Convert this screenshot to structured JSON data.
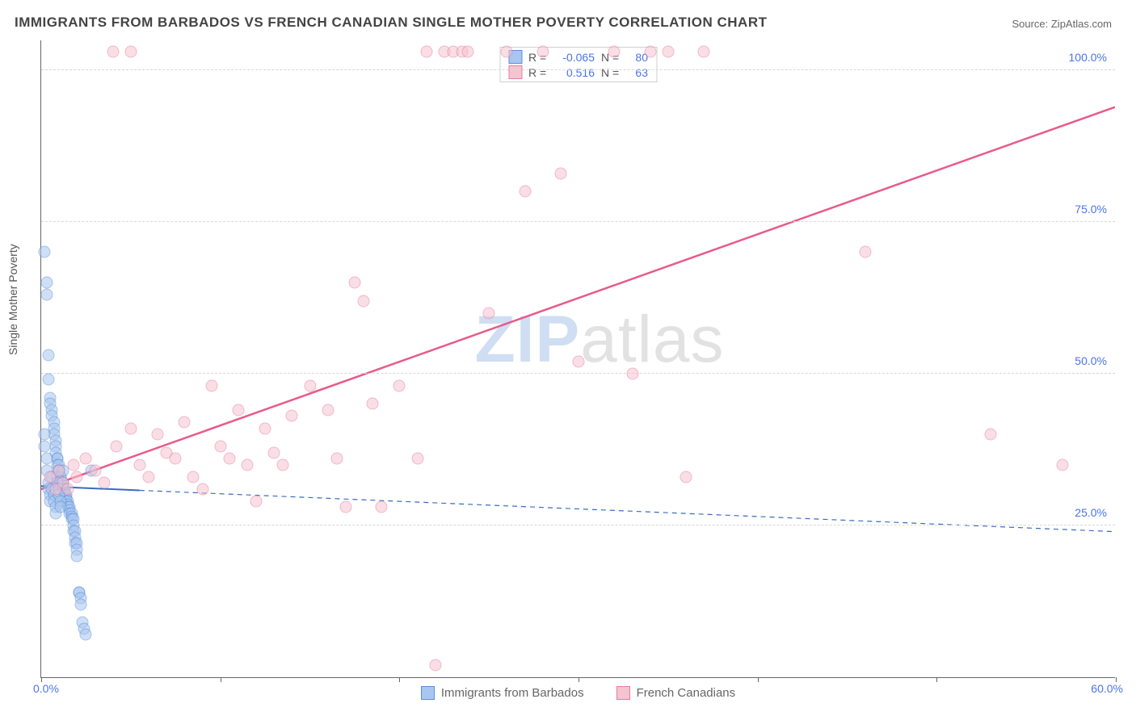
{
  "title": "IMMIGRANTS FROM BARBADOS VS FRENCH CANADIAN SINGLE MOTHER POVERTY CORRELATION CHART",
  "source": "Source: ZipAtlas.com",
  "ylabel": "Single Mother Poverty",
  "watermark": {
    "zip": "ZIP",
    "atlas": "atlas"
  },
  "chart": {
    "type": "scatter",
    "xlim": [
      0,
      60
    ],
    "ylim": [
      0,
      105
    ],
    "x_ticks": [
      0,
      10,
      20,
      30,
      40,
      50,
      60
    ],
    "x_tick_labels": {
      "min": "0.0%",
      "max": "60.0%"
    },
    "y_gridlines": [
      25,
      50,
      75,
      100
    ],
    "y_tick_labels": [
      "25.0%",
      "50.0%",
      "75.0%",
      "100.0%"
    ],
    "background_color": "#ffffff",
    "grid_color": "#d8d8d8",
    "axis_color": "#666666",
    "tick_label_color": "#4a74e8",
    "marker_radius": 6.5,
    "marker_opacity": 0.55,
    "series": [
      {
        "name": "Immigrants from Barbados",
        "fill": "#a8c6f0",
        "stroke": "#5b8fd6",
        "r_value": "-0.065",
        "n_value": "80",
        "trend": {
          "x1": 0,
          "y1": 31.5,
          "x2": 60,
          "y2": 24,
          "stroke": "#3a6bbf",
          "width": 2,
          "dash": "none",
          "solid_until_x": 5.5
        },
        "points": [
          [
            0.2,
            70
          ],
          [
            0.3,
            65
          ],
          [
            0.3,
            63
          ],
          [
            0.4,
            53
          ],
          [
            0.4,
            49
          ],
          [
            0.5,
            46
          ],
          [
            0.5,
            45
          ],
          [
            0.6,
            44
          ],
          [
            0.6,
            43
          ],
          [
            0.7,
            42
          ],
          [
            0.7,
            41
          ],
          [
            0.7,
            40
          ],
          [
            0.8,
            39
          ],
          [
            0.8,
            38
          ],
          [
            0.8,
            37
          ],
          [
            0.9,
            36
          ],
          [
            0.9,
            36
          ],
          [
            0.9,
            35
          ],
          [
            1.0,
            35
          ],
          [
            1.0,
            34
          ],
          [
            1.0,
            34
          ],
          [
            1.1,
            33
          ],
          [
            1.1,
            33
          ],
          [
            1.1,
            32
          ],
          [
            1.2,
            32
          ],
          [
            1.2,
            31.5
          ],
          [
            1.2,
            31
          ],
          [
            1.3,
            31
          ],
          [
            1.3,
            30.5
          ],
          [
            1.3,
            30
          ],
          [
            1.4,
            30
          ],
          [
            1.4,
            29.5
          ],
          [
            1.4,
            29
          ],
          [
            1.5,
            29
          ],
          [
            1.5,
            28.5
          ],
          [
            1.5,
            28
          ],
          [
            1.6,
            28
          ],
          [
            1.6,
            27.5
          ],
          [
            1.6,
            27
          ],
          [
            1.7,
            27
          ],
          [
            1.7,
            26.5
          ],
          [
            1.7,
            26
          ],
          [
            1.8,
            26
          ],
          [
            1.8,
            25
          ],
          [
            1.8,
            24
          ],
          [
            1.9,
            24
          ],
          [
            1.9,
            23
          ],
          [
            1.9,
            22
          ],
          [
            2.0,
            22
          ],
          [
            2.0,
            21
          ],
          [
            2.0,
            20
          ],
          [
            2.1,
            14
          ],
          [
            2.1,
            14
          ],
          [
            2.2,
            13
          ],
          [
            2.2,
            12
          ],
          [
            2.3,
            9
          ],
          [
            2.4,
            8
          ],
          [
            2.5,
            7
          ],
          [
            2.8,
            34
          ],
          [
            0.2,
            40
          ],
          [
            0.2,
            38
          ],
          [
            0.3,
            36
          ],
          [
            0.3,
            34
          ],
          [
            0.4,
            32
          ],
          [
            0.4,
            31
          ],
          [
            0.5,
            30
          ],
          [
            0.5,
            29
          ],
          [
            0.6,
            33
          ],
          [
            0.6,
            31
          ],
          [
            0.7,
            30
          ],
          [
            0.7,
            29
          ],
          [
            0.8,
            28
          ],
          [
            0.8,
            27
          ],
          [
            0.9,
            33
          ],
          [
            0.9,
            32
          ],
          [
            1.0,
            31
          ],
          [
            1.0,
            30
          ],
          [
            1.1,
            29
          ],
          [
            1.1,
            28
          ],
          [
            1.2,
            34
          ]
        ]
      },
      {
        "name": "French Canadians",
        "fill": "#f5c4d1",
        "stroke": "#e87ba0",
        "r_value": "0.516",
        "n_value": "63",
        "trend": {
          "x1": 0,
          "y1": 31,
          "x2": 60,
          "y2": 94,
          "stroke": "#e85a8a",
          "width": 2.5,
          "dash": "none",
          "solid_until_x": 60
        },
        "points": [
          [
            0.5,
            33
          ],
          [
            0.8,
            31
          ],
          [
            1.0,
            34
          ],
          [
            1.2,
            32
          ],
          [
            1.5,
            31
          ],
          [
            1.8,
            35
          ],
          [
            2.0,
            33
          ],
          [
            2.5,
            36
          ],
          [
            3.0,
            34
          ],
          [
            3.5,
            32
          ],
          [
            4.0,
            103
          ],
          [
            4.2,
            38
          ],
          [
            5.0,
            41
          ],
          [
            5.5,
            35
          ],
          [
            6.0,
            33
          ],
          [
            6.5,
            40
          ],
          [
            7.0,
            37
          ],
          [
            7.5,
            36
          ],
          [
            8.0,
            42
          ],
          [
            8.5,
            33
          ],
          [
            9.0,
            31
          ],
          [
            9.5,
            48
          ],
          [
            10.0,
            38
          ],
          [
            10.5,
            36
          ],
          [
            11.0,
            44
          ],
          [
            11.5,
            35
          ],
          [
            12.0,
            29
          ],
          [
            12.5,
            41
          ],
          [
            13.0,
            37
          ],
          [
            13.5,
            35
          ],
          [
            14.0,
            43
          ],
          [
            15.0,
            48
          ],
          [
            16.0,
            44
          ],
          [
            16.5,
            36
          ],
          [
            17.0,
            28
          ],
          [
            17.5,
            65
          ],
          [
            18.0,
            62
          ],
          [
            18.5,
            45
          ],
          [
            19.0,
            28
          ],
          [
            20.0,
            48
          ],
          [
            21.0,
            36
          ],
          [
            21.5,
            103
          ],
          [
            22.0,
            2
          ],
          [
            22.5,
            103
          ],
          [
            23.0,
            103
          ],
          [
            23.5,
            103
          ],
          [
            23.8,
            103
          ],
          [
            25.0,
            60
          ],
          [
            26.0,
            103
          ],
          [
            27.0,
            80
          ],
          [
            28.0,
            103
          ],
          [
            29.0,
            83
          ],
          [
            30.0,
            52
          ],
          [
            32.0,
            103
          ],
          [
            33.0,
            50
          ],
          [
            34.0,
            103
          ],
          [
            35.0,
            103
          ],
          [
            36.0,
            33
          ],
          [
            37.0,
            103
          ],
          [
            46.0,
            70
          ],
          [
            53.0,
            40
          ],
          [
            57.0,
            35
          ],
          [
            5.0,
            103
          ]
        ]
      }
    ]
  },
  "legend": {
    "items": [
      {
        "label": "Immigrants from Barbados",
        "fill": "#a8c6f0",
        "stroke": "#5b8fd6"
      },
      {
        "label": "French Canadians",
        "fill": "#f5c4d1",
        "stroke": "#e87ba0"
      }
    ]
  },
  "stats_labels": {
    "r": "R =",
    "n": "N ="
  }
}
